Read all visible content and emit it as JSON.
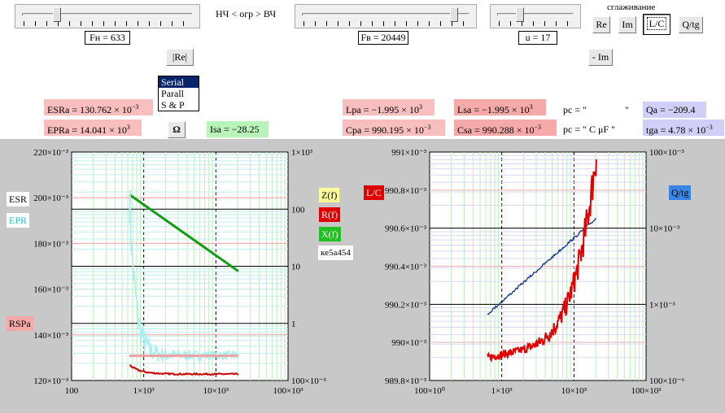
{
  "top": {
    "range_label": "НЧ < огр > ВЧ",
    "smoothing_label": "сглаживание",
    "fn_field": "Fн = 633",
    "fv_field": "Fв = 20449",
    "u_field": "u = 17",
    "fn_slider": 0.19,
    "fv_slider": 0.93,
    "u_slider": 0.27
  },
  "buttons": {
    "re": "Re",
    "im": "Im",
    "lc": "L/C",
    "qtg": "Q/tg",
    "re2": "|Re|",
    "minus_im": "- Im",
    "omega": "Ω"
  },
  "listbox": {
    "items": [
      "Serial",
      "Parall",
      "S & P"
    ],
    "selected": "Serial"
  },
  "values": {
    "esra": "ESRa = 130.762 × 10",
    "esra_exp": "−3",
    "epra": "EPRa = 14.041 × 10",
    "epra_exp": "3",
    "isa": "Isa = −28.25",
    "lpa": "Lpa = −1.995 × 10",
    "lpa_exp": "3",
    "cpa": "Cpa = 990.195 × 10",
    "cpa_exp": "−3",
    "lsa": "Lsa = −1.995 × 10",
    "lsa_exp": "3",
    "csa": "Csa = 990.288 × 10",
    "csa_exp": "−3",
    "pc1": "pc = \"",
    "pc1_end": "\"",
    "pc2": "pc = \"  C  μF  \"",
    "qa": "Qa = −209.4",
    "tga": "tga = 4.78 × 10",
    "tga_exp": "−3"
  },
  "left_plot": {
    "legend_esr": "ESR",
    "legend_epr": "EPR",
    "legend_rspa": "RSPa",
    "legend_z": "Z(f)",
    "legend_r": "R(f)",
    "legend_x": "X(f)",
    "legend_hex": "ке5а454",
    "y_left_ticks": [
      "220×10⁻³",
      "200×10⁻³",
      "180×10⁻³",
      "160×10⁻³",
      "140×10⁻³",
      "120×10⁻³"
    ],
    "y_right_ticks": [
      "1×10³",
      "100",
      "10",
      "1",
      "100×10⁻³"
    ],
    "x_ticks": [
      "100",
      "1×10³",
      "10×10³",
      "100×10³"
    ]
  },
  "right_plot": {
    "legend_lc": "L/C",
    "legend_qtg": "Q/tg",
    "y_left_ticks": [
      "991×10⁻³",
      "990.8×10⁻³",
      "990.6×10⁻³",
      "990.4×10⁻³",
      "990.2×10⁻³",
      "990×10⁻³",
      "989.8×10⁻³"
    ],
    "y_right_ticks": [
      "100×10⁻³",
      "10×10⁻³",
      "1×10⁻³",
      "100×10⁻⁶"
    ],
    "x_ticks": [
      "100×10⁰",
      "1×10³",
      "10×10³",
      "100×10³"
    ]
  },
  "colors": {
    "esr_line": "#f0a0a0",
    "epr_line": "#a8f0f0",
    "r_line": "#d00000",
    "x_line": "#139d13",
    "lc_line": "#e00000",
    "qtg_line": "#102f8a"
  }
}
